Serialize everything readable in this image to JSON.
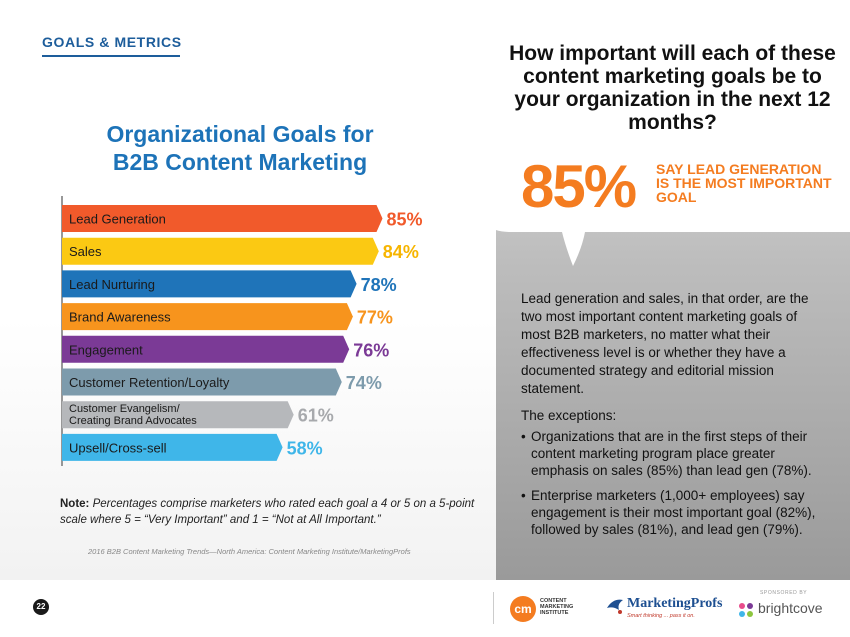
{
  "header": {
    "section_label": "GOALS & METRICS"
  },
  "chart_data": {
    "type": "bar",
    "orientation": "horizontal",
    "title": "Organizational Goals for B2B Content Marketing",
    "title_lines": [
      "Organizational Goals for",
      "B2B Content Marketing"
    ],
    "categories": [
      "Lead Generation",
      "Sales",
      "Lead Nurturing",
      "Brand Awareness",
      "Engagement",
      "Customer Retention/Loyalty",
      "Customer Evangelism/ Creating Brand Advocates",
      "Upsell/Cross-sell"
    ],
    "category_lines": [
      [
        "Lead Generation"
      ],
      [
        "Sales"
      ],
      [
        "Lead Nurturing"
      ],
      [
        "Brand Awareness"
      ],
      [
        "Engagement"
      ],
      [
        "Customer Retention/Loyalty"
      ],
      [
        "Customer Evangelism/",
        "Creating Brand Advocates"
      ],
      [
        "Upsell/Cross-sell"
      ]
    ],
    "values": [
      85,
      84,
      78,
      77,
      76,
      74,
      61,
      58
    ],
    "value_labels": [
      "85%",
      "84%",
      "78%",
      "77%",
      "76%",
      "74%",
      "61%",
      "58%"
    ],
    "colors": [
      "#f15a2b",
      "#fbc913",
      "#1f74b9",
      "#f7941d",
      "#7b3a96",
      "#7d9bac",
      "#b6b8bb",
      "#3fb6e9"
    ],
    "label_colors": [
      "#f15a2b",
      "#f7b500",
      "#1f74b9",
      "#f7941d",
      "#7b3a96",
      "#7d9bac",
      "#a7a9ac",
      "#3fb6e9"
    ],
    "xlabel": "",
    "ylabel": "",
    "grid": false,
    "legend": "none"
  },
  "note": {
    "label": "Note:",
    "text": "Percentages comprise marketers who rated each goal a 4 or 5 on a 5-point scale where 5 = “Very Important” and 1 = “Not at All Important.”"
  },
  "source": "2016 B2B Content Marketing Trends—North America: Content Marketing Institute/MarketingProfs",
  "callout": {
    "question": "How important will each of these content marketing goals be to your organization in the next 12 months?",
    "highlight_value": "85%",
    "highlight_caption": "SAY LEAD GENERATION IS THE MOST IMPORTANT GOAL",
    "body": "Lead generation and sales, in that order, are the two most important content marketing goals of most B2B marketers, no matter what their effectiveness level is or whether they have a documented strategy and editorial mission statement.",
    "exceptions_title": "The exceptions:",
    "exceptions": [
      "Organizations that are in the first steps of their content marketing program place greater emphasis on sales (85%) than lead gen (78%).",
      "Enterprise marketers (1,000+ employees) say engagement is their most important goal (82%), followed by sales (81%), and lead gen (79%)."
    ],
    "accent_color": "#f47c20"
  },
  "footer": {
    "page_number": "22",
    "cmi_mark": "cm",
    "cmi_text": "CONTENT MARKETING INSTITUTE",
    "mp_name": "MarketingProfs",
    "mp_tagline": "Smart thinking ... pass it on.",
    "sponsored_label": "SPONSORED BY",
    "bc_name": "brightcove"
  }
}
